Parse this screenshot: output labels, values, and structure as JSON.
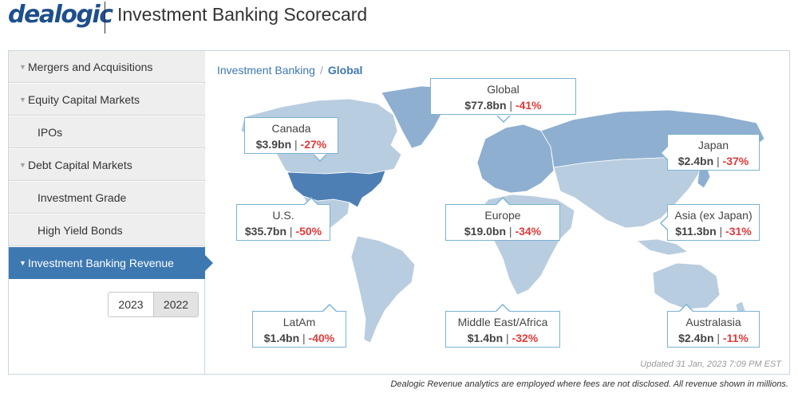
{
  "header": {
    "logo": "dealogic",
    "title": "Investment Banking Scorecard"
  },
  "sidebar": {
    "items": [
      {
        "label": "Mergers and Acquisitions",
        "has_caret": true
      },
      {
        "label": "Equity Capital Markets",
        "has_caret": true
      },
      {
        "label": "IPOs",
        "has_caret": false
      },
      {
        "label": "Debt Capital Markets",
        "has_caret": true
      },
      {
        "label": "Investment Grade",
        "has_caret": false
      },
      {
        "label": "High Yield Bonds",
        "has_caret": false
      },
      {
        "label": "Investment Banking Revenue",
        "has_caret": true,
        "active": true
      }
    ],
    "years": [
      {
        "label": "2023",
        "selected": false
      },
      {
        "label": "2022",
        "selected": true
      }
    ]
  },
  "breadcrumb": {
    "parent": "Investment Banking",
    "separator": "/",
    "current": "Global"
  },
  "regions": {
    "global": {
      "name": "Global",
      "value": "$77.8bn",
      "change": "-41%"
    },
    "canada": {
      "name": "Canada",
      "value": "$3.9bn",
      "change": "-27%"
    },
    "japan": {
      "name": "Japan",
      "value": "$2.4bn",
      "change": "-37%"
    },
    "us": {
      "name": "U.S.",
      "value": "$35.7bn",
      "change": "-50%"
    },
    "europe": {
      "name": "Europe",
      "value": "$19.0bn",
      "change": "-34%"
    },
    "asia": {
      "name": "Asia (ex Japan)",
      "value": "$11.3bn",
      "change": "-31%"
    },
    "latam": {
      "name": "LatAm",
      "value": "$1.4bn",
      "change": "-40%"
    },
    "mea": {
      "name": "Middle East/Africa",
      "value": "$1.4bn",
      "change": "-32%"
    },
    "australasia": {
      "name": "Australasia",
      "value": "$2.4bn",
      "change": "-11%"
    }
  },
  "updated": "Updated 31 Jan, 2023 7:09 PM EST",
  "footnote": "Dealogic Revenue analytics are employed where fees are not disclosed. All revenue shown in millions.",
  "colors": {
    "brand": "#1e4f8c",
    "active_nav": "#3d78b1",
    "negative": "#e03a3a",
    "map_light": "#b9cde0",
    "map_mid": "#8eafd0",
    "map_dark": "#4d7fb5"
  }
}
